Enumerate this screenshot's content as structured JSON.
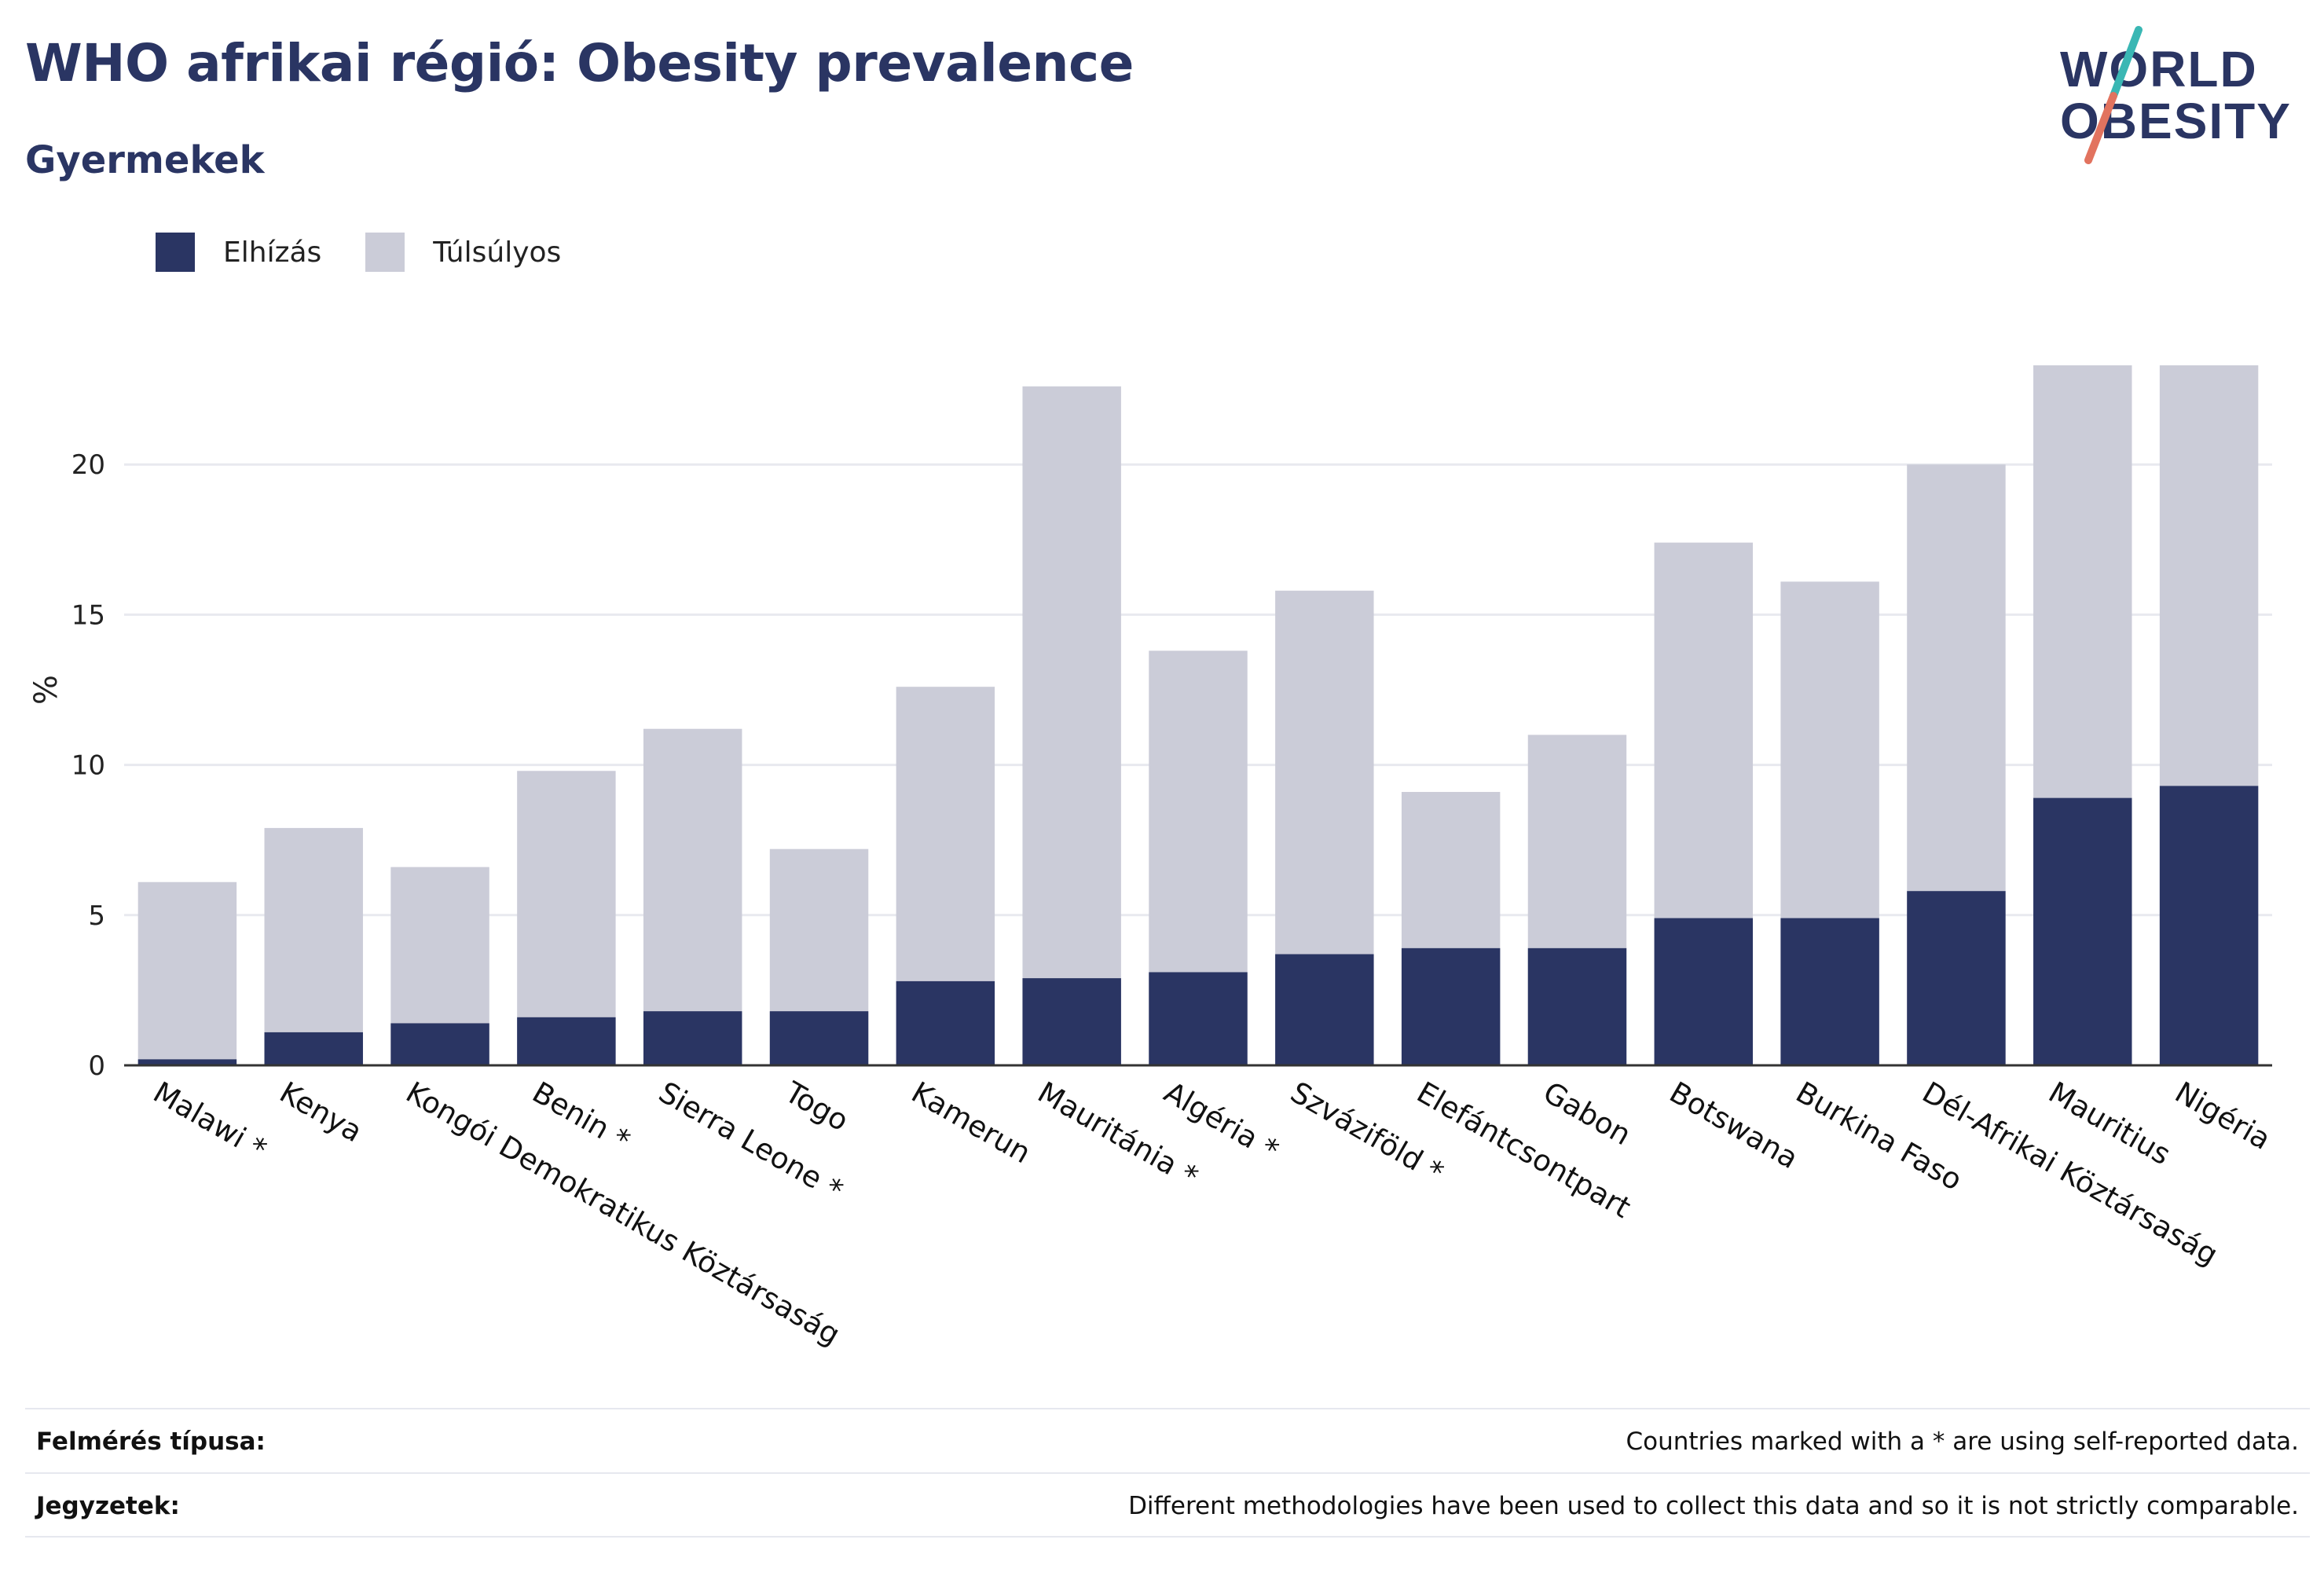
{
  "header": {
    "title": "WHO afrikai régió: Obesity prevalence",
    "subtitle": "Gyermekek"
  },
  "logo": {
    "line1": "WORLD",
    "line2": "OBESITY",
    "colors": {
      "text": "#2a3563",
      "slash_top": "#3ab7b4",
      "slash_bottom": "#e2735f"
    }
  },
  "legend": [
    {
      "label": "Elhízás",
      "color": "#2a3563"
    },
    {
      "label": "Túlsúlyos",
      "color": "#cbccd8"
    }
  ],
  "chart_data": {
    "type": "bar",
    "stacking": "overlay",
    "ylabel": "%",
    "ylim": [
      0,
      25
    ],
    "yticks": [
      0,
      5,
      10,
      15,
      20
    ],
    "grid": true,
    "categories": [
      "Malawi *",
      "Kenya",
      "Kongói Demokratikus Köztársaság",
      "Benin *",
      "Sierra Leone *",
      "Togo",
      "Kamerun",
      "Mauritánia *",
      "Algéria *",
      "Szváziföld *",
      "Elefántcsontpart",
      "Gabon",
      "Botswana",
      "Burkina Faso",
      "Dél-Afrikai Köztársaság",
      "Mauritius",
      "Nigéria"
    ],
    "series": [
      {
        "name": "Túlsúlyos",
        "color": "#cbccd8",
        "values": [
          6.1,
          7.9,
          6.6,
          9.8,
          11.2,
          7.2,
          12.6,
          22.6,
          13.8,
          15.8,
          9.1,
          11.0,
          17.4,
          16.1,
          20.0,
          23.3,
          23.3
        ]
      },
      {
        "name": "Elhízás",
        "color": "#2a3563",
        "values": [
          0.2,
          1.1,
          1.4,
          1.6,
          1.8,
          1.8,
          2.8,
          2.9,
          3.1,
          3.7,
          3.9,
          3.9,
          4.9,
          4.9,
          5.8,
          8.9,
          9.3
        ]
      }
    ]
  },
  "footer": {
    "rows": [
      {
        "label": "Felmérés típusa:",
        "value": "Countries marked with a * are using self-reported data."
      },
      {
        "label": "Jegyzetek:",
        "value": "Different methodologies have been used to collect this data and so it is not strictly comparable."
      }
    ]
  }
}
